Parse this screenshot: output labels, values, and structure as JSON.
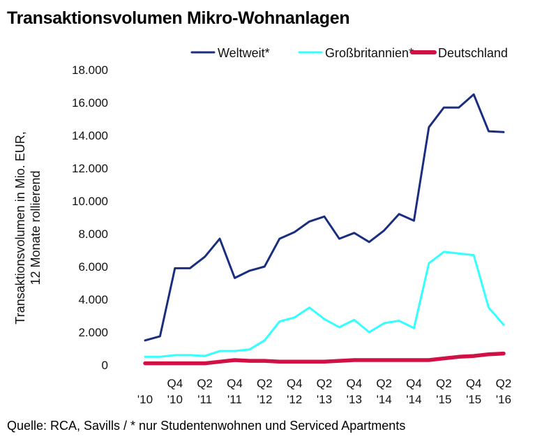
{
  "title": "Transaktionsvolumen Mikro-Wohnanlagen",
  "source": "Quelle: RCA, Savills / * nur Studentenwohnen und Serviced Apartments",
  "chart_data": {
    "type": "line",
    "title": "Transaktionsvolumen Mikro-Wohnanlagen",
    "ylabel_lines": [
      "Transaktionsvolumen in Mio. EUR,",
      "12 Monate rollierend"
    ],
    "ylim": [
      0,
      18000
    ],
    "yticks": [
      0,
      2000,
      4000,
      6000,
      8000,
      10000,
      12000,
      14000,
      16000,
      18000
    ],
    "ytick_labels": [
      "0",
      "2.000",
      "4.000",
      "6.000",
      "8.000",
      "10.000",
      "12.000",
      "14.000",
      "16.000",
      "18.000"
    ],
    "x": [
      "Q2 '10",
      "Q3 '10",
      "Q4 '10",
      "Q1 '11",
      "Q2 '11",
      "Q3 '11",
      "Q4 '11",
      "Q1 '12",
      "Q2 '12",
      "Q3 '12",
      "Q4 '12",
      "Q1 '13",
      "Q2 '13",
      "Q3 '13",
      "Q4 '13",
      "Q1 '14",
      "Q2 '14",
      "Q3 '14",
      "Q4 '14",
      "Q1 '15",
      "Q2 '15",
      "Q3 '15",
      "Q4 '15",
      "Q1 '16",
      "Q2 '16"
    ],
    "xtick_labels": [
      {
        "index": 0,
        "lines": [
          "",
          "'10"
        ]
      },
      {
        "index": 2,
        "lines": [
          "Q4",
          "'10"
        ]
      },
      {
        "index": 4,
        "lines": [
          "Q2",
          "'11"
        ]
      },
      {
        "index": 6,
        "lines": [
          "Q4",
          "'11"
        ]
      },
      {
        "index": 8,
        "lines": [
          "Q2",
          "'12"
        ]
      },
      {
        "index": 10,
        "lines": [
          "Q4",
          "'12"
        ]
      },
      {
        "index": 12,
        "lines": [
          "Q2",
          "'13"
        ]
      },
      {
        "index": 14,
        "lines": [
          "Q4",
          "'13"
        ]
      },
      {
        "index": 16,
        "lines": [
          "Q2",
          "'14"
        ]
      },
      {
        "index": 18,
        "lines": [
          "Q4",
          "'14"
        ]
      },
      {
        "index": 20,
        "lines": [
          "Q2",
          "'15"
        ]
      },
      {
        "index": 22,
        "lines": [
          "Q4",
          "'15"
        ]
      },
      {
        "index": 24,
        "lines": [
          "Q2",
          "'16"
        ]
      }
    ],
    "series": [
      {
        "name": "Weltweit*",
        "color": "#1a2e80",
        "values": [
          1500,
          1750,
          5900,
          5900,
          6600,
          7700,
          5300,
          5750,
          6000,
          7700,
          8100,
          8750,
          9050,
          7700,
          8050,
          7500,
          8200,
          9200,
          8800,
          14500,
          15700,
          15700,
          16500,
          14250,
          14200
        ]
      },
      {
        "name": "Großbritannien*",
        "color": "#33ffff",
        "values": [
          500,
          500,
          600,
          600,
          550,
          850,
          850,
          950,
          1500,
          2650,
          2900,
          3500,
          2800,
          2300,
          2750,
          2000,
          2550,
          2700,
          2250,
          6200,
          6900,
          6800,
          6700,
          3500,
          2450
        ]
      },
      {
        "name": "Deutschland",
        "color": "#d11045",
        "values": [
          100,
          100,
          100,
          100,
          100,
          200,
          300,
          250,
          250,
          200,
          200,
          200,
          200,
          250,
          300,
          300,
          300,
          300,
          300,
          300,
          400,
          500,
          550,
          650,
          700
        ]
      }
    ],
    "legend_position": "top",
    "grid": false
  }
}
